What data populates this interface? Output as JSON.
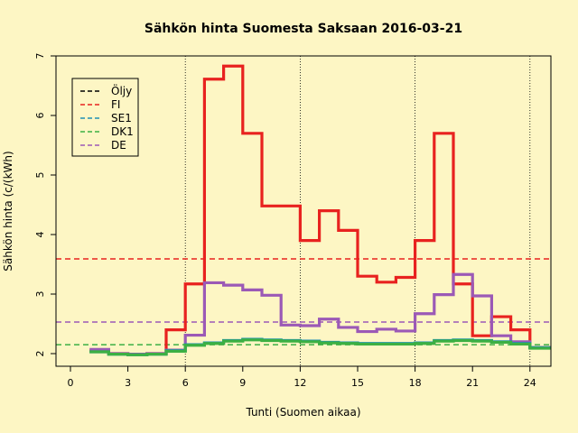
{
  "chart_data": {
    "type": "line",
    "title": "Sähkön hinta Suomesta Saksaan 2016-03-21",
    "xlabel": "Tunti (Suomen aikaa)",
    "ylabel": "Sähkön hinta (c/(kWh)",
    "xlim": [
      -1,
      25
    ],
    "ylim": [
      1.8,
      7
    ],
    "x_ticks": [
      0,
      3,
      6,
      9,
      12,
      15,
      18,
      21,
      24
    ],
    "y_ticks": [
      2,
      3,
      4,
      5,
      6,
      7
    ],
    "vertical_gridlines": [
      6,
      12,
      18,
      24
    ],
    "legend_position": "top-left",
    "colors": {
      "Öljy": "#000000",
      "FI": "#e8221f",
      "SE1": "#1f8fb4",
      "DK1": "#3cb043",
      "DE": "#9b59b6",
      "background": "#fdf6c4"
    },
    "hours": [
      1,
      2,
      3,
      4,
      5,
      6,
      7,
      8,
      9,
      10,
      11,
      12,
      13,
      14,
      15,
      16,
      17,
      18,
      19,
      20,
      21,
      22,
      23,
      24
    ],
    "series": [
      {
        "name": "Öljy",
        "values": []
      },
      {
        "name": "FI",
        "mean": 3.59,
        "values": [
          2.05,
          2.0,
          1.99,
          2.0,
          2.4,
          3.17,
          6.61,
          6.83,
          5.7,
          4.48,
          4.48,
          3.9,
          4.4,
          4.07,
          3.3,
          3.2,
          3.28,
          3.9,
          5.7,
          3.17,
          2.3,
          2.62,
          2.4,
          2.1
        ]
      },
      {
        "name": "SE1",
        "values": [
          2.03,
          1.99,
          1.98,
          1.99,
          2.05,
          2.15,
          2.18,
          2.22,
          2.24,
          2.23,
          2.22,
          2.21,
          2.19,
          2.18,
          2.17,
          2.17,
          2.17,
          2.18,
          2.22,
          2.23,
          2.22,
          2.2,
          2.17,
          2.1
        ]
      },
      {
        "name": "DK1",
        "mean": 2.15,
        "values": [
          2.03,
          1.99,
          1.98,
          1.99,
          2.04,
          2.14,
          2.17,
          2.21,
          2.23,
          2.22,
          2.21,
          2.2,
          2.18,
          2.17,
          2.16,
          2.16,
          2.16,
          2.17,
          2.21,
          2.22,
          2.21,
          2.19,
          2.16,
          2.09
        ]
      },
      {
        "name": "DE",
        "mean": 2.53,
        "values": [
          2.07,
          2.0,
          1.99,
          2.0,
          2.06,
          2.31,
          3.19,
          3.15,
          3.07,
          2.98,
          2.48,
          2.47,
          2.58,
          2.44,
          2.37,
          2.41,
          2.38,
          2.67,
          2.99,
          3.33,
          2.97,
          2.3,
          2.2,
          2.1
        ]
      }
    ]
  }
}
